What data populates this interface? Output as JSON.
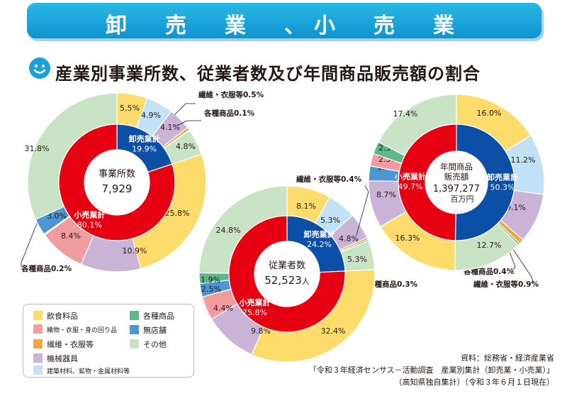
{
  "header": {
    "title": "卸　売　業　、小　売　業"
  },
  "subtitle": "産業別事業所数、従業者数及び年間商品販売額の割合",
  "colors": {
    "wholesale_total": "#0b50a6",
    "retail_total": "#e60012",
    "food": "#fddc6b",
    "textile_personal": "#f29c9f",
    "fiber_clothing": "#f5a33a",
    "machinery": "#c9b4d8",
    "building_materials": "#c3e1f4",
    "general_merchandise": "#5fb88b",
    "non_store": "#4b97d1",
    "other": "#c9e3c5"
  },
  "legend": [
    {
      "label": "飲食料品",
      "color": "#fddc6b"
    },
    {
      "label": "織物・衣服・身の回り品",
      "color": "#f29c9f"
    },
    {
      "label": "繊維・衣服等",
      "color": "#f5a33a"
    },
    {
      "label": "機械器具",
      "color": "#c9b4d8"
    },
    {
      "label": "建築材料、鉱物・金属材料等",
      "color": "#c3e1f4"
    },
    {
      "label": "各種商品",
      "color": "#5fb88b"
    },
    {
      "label": "無店舗",
      "color": "#4b97d1"
    },
    {
      "label": "その他",
      "color": "#c9e3c5"
    }
  ],
  "source": [
    "資料：総務省・経済産業省",
    "「令和３年経済センサス－活動調査　産業別集計（卸売業・小売業）」",
    "（高知県独自集計）（令和３年６月１日現在）"
  ],
  "chart_data": [
    {
      "type": "pie",
      "center_title": "事業所数",
      "center_value": "7,929",
      "center_unit": "",
      "inner": [
        {
          "name": "卸売業計",
          "label": "卸売業計",
          "value": 19.9,
          "value_label": "19.9%"
        },
        {
          "name": "小売業計",
          "label": "小売業計",
          "value": 80.1,
          "value_label": "80.1%"
        }
      ],
      "outer": [
        {
          "category": "飲食料品",
          "group": "卸売業",
          "value": 5.5,
          "label": "5.5%"
        },
        {
          "category": "建築材料、鉱物・金属材料等",
          "group": "卸売業",
          "value": 4.9,
          "label": "4.9%"
        },
        {
          "category": "機械器具",
          "group": "卸売業",
          "value": 4.1,
          "label": "4.1%"
        },
        {
          "category": "繊維・衣服等",
          "group": "卸売業",
          "value": 0.5,
          "label": "繊維・衣服等0.5%"
        },
        {
          "category": "各種商品",
          "group": "卸売業",
          "value": 0.1,
          "label": "各種商品0.1%"
        },
        {
          "category": "その他",
          "group": "卸売業",
          "value": 4.8,
          "label": "4.8%"
        },
        {
          "category": "飲食料品",
          "group": "小売業",
          "value": 25.8,
          "label": "25.8%"
        },
        {
          "category": "機械器具",
          "group": "小売業",
          "value": 10.9,
          "label": "10.9%"
        },
        {
          "category": "織物・衣服・身の回り品",
          "group": "小売業",
          "value": 8.4,
          "label": "8.4%"
        },
        {
          "category": "各種商品",
          "group": "小売業",
          "value": 0.2,
          "label": "各種商品0.2%"
        },
        {
          "category": "無店舗",
          "group": "小売業",
          "value": 3.0,
          "label": "3.0%"
        },
        {
          "category": "その他",
          "group": "小売業",
          "value": 31.8,
          "label": "31.8%"
        }
      ]
    },
    {
      "type": "pie",
      "center_title": "従業者数",
      "center_value": "52,523",
      "center_unit": "人",
      "inner": [
        {
          "name": "卸売業計",
          "label": "卸売業計",
          "value": 24.2,
          "value_label": "24.2%"
        },
        {
          "name": "小売業計",
          "label": "小売業計",
          "value": 75.8,
          "value_label": "75.8%"
        }
      ],
      "outer": [
        {
          "category": "飲食料品",
          "group": "卸売業",
          "value": 8.1,
          "label": "8.1%"
        },
        {
          "category": "建築材料、鉱物・金属材料等",
          "group": "卸売業",
          "value": 5.3,
          "label": "5.3%"
        },
        {
          "category": "機械器具",
          "group": "卸売業",
          "value": 4.8,
          "label": "4.8%"
        },
        {
          "category": "繊維・衣服等",
          "group": "卸売業",
          "value": 0.4,
          "label": "繊維・衣服等0.4%"
        },
        {
          "category": "各種商品",
          "group": "卸売業",
          "value": 0.3,
          "label": "各種商品0.3%"
        },
        {
          "category": "その他",
          "group": "卸売業",
          "value": 5.3,
          "label": "5.3%"
        },
        {
          "category": "飲食料品",
          "group": "小売業",
          "value": 32.4,
          "label": "32.4%"
        },
        {
          "category": "機械器具",
          "group": "小売業",
          "value": 9.8,
          "label": "9.8%"
        },
        {
          "category": "織物・衣服・身の回り品",
          "group": "小売業",
          "value": 4.4,
          "label": "4.4%"
        },
        {
          "category": "無店舗",
          "group": "小売業",
          "value": 2.5,
          "label": "2.5%"
        },
        {
          "category": "各種商品",
          "group": "小売業",
          "value": 1.9,
          "label": "1.9%"
        },
        {
          "category": "その他",
          "group": "小売業",
          "value": 24.8,
          "label": "24.8%"
        }
      ]
    },
    {
      "type": "pie",
      "center_title": "年間商品販売額",
      "center_value": "1,397,277",
      "center_unit": "百万円",
      "inner": [
        {
          "name": "卸売業計",
          "label": "卸売業計",
          "value": 50.3,
          "value_label": "50.3%"
        },
        {
          "name": "小売業計",
          "label": "小売業計",
          "value": 49.7,
          "value_label": "49.7%"
        }
      ],
      "outer": [
        {
          "category": "飲食料品",
          "group": "卸売業",
          "value": 16.0,
          "label": "16.0%"
        },
        {
          "category": "建築材料、鉱物・金属材料等",
          "group": "卸売業",
          "value": 11.2,
          "label": "11.2%"
        },
        {
          "category": "機械器具",
          "group": "卸売業",
          "value": 9.1,
          "label": "9.1%"
        },
        {
          "category": "繊維・衣服等",
          "group": "卸売業",
          "value": 0.9,
          "label": "繊維・衣服等0.9%"
        },
        {
          "category": "各種商品",
          "group": "卸売業",
          "value": 0.4,
          "label": "各種商品0.4%"
        },
        {
          "category": "その他",
          "group": "卸売業",
          "value": 12.7,
          "label": "12.7%"
        },
        {
          "category": "飲食料品",
          "group": "小売業",
          "value": 16.3,
          "label": "16.3%"
        },
        {
          "category": "機械器具",
          "group": "小売業",
          "value": 8.7,
          "label": "8.7%"
        },
        {
          "category": "無店舗",
          "group": "小売業",
          "value": 2.7,
          "label": "2.7%"
        },
        {
          "category": "織物・衣服・身の回り品",
          "group": "小売業",
          "value": 2.3,
          "label": "2.3%"
        },
        {
          "category": "各種商品",
          "group": "小売業",
          "value": 2.3,
          "label": "2.3%"
        },
        {
          "category": "その他",
          "group": "小売業",
          "value": 17.4,
          "label": "17.4%"
        }
      ]
    }
  ]
}
